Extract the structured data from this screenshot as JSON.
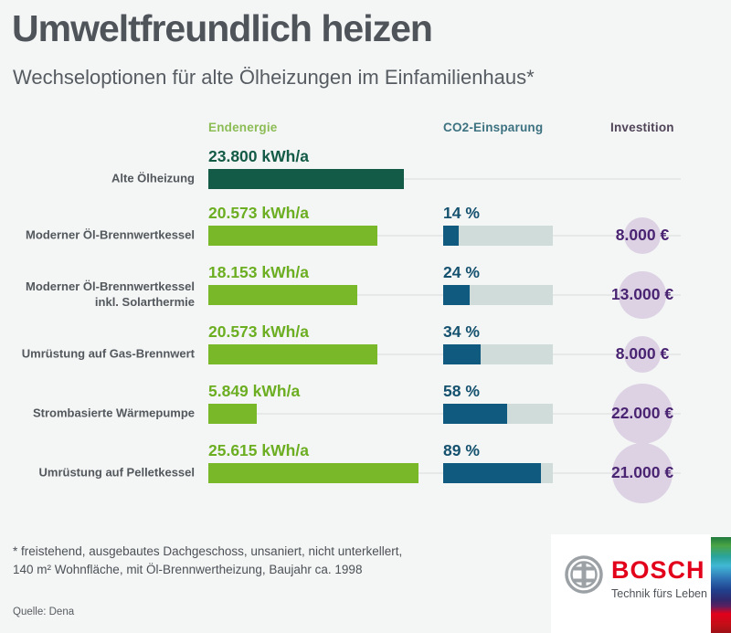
{
  "title": "Umweltfreundlich heizen",
  "subtitle": "Wechseloptionen für alte Ölheizungen im Einfamilienhaus*",
  "columns": {
    "energy": "Endenergie",
    "co2": "CO2-Einsparung",
    "invest": "Investition"
  },
  "rows": [
    {
      "label": "Alte Ölheizung",
      "energy_label": "23.800 kWh/a",
      "energy_kwh": 23800,
      "co2_label": "",
      "co2_pct": 0,
      "invest_label": "",
      "invest_eur": 0
    },
    {
      "label": "Moderner Öl-Brennwertkessel",
      "energy_label": "20.573 kWh/a",
      "energy_kwh": 20573,
      "co2_label": "14 %",
      "co2_pct": 14,
      "invest_label": "8.000 €",
      "invest_eur": 8000
    },
    {
      "label": "Moderner Öl-Brennwertkessel\ninkl. Solarthermie",
      "energy_label": "18.153 kWh/a",
      "energy_kwh": 18153,
      "co2_label": "24 %",
      "co2_pct": 24,
      "invest_label": "13.000 €",
      "invest_eur": 13000
    },
    {
      "label": "Umrüstung auf Gas-Brennwert",
      "energy_label": "20.573 kWh/a",
      "energy_kwh": 20573,
      "co2_label": "34 %",
      "co2_pct": 34,
      "invest_label": "8.000 €",
      "invest_eur": 8000
    },
    {
      "label": "Strombasierte Wärmepumpe",
      "energy_label": "5.849 kWh/a",
      "energy_kwh": 5849,
      "co2_label": "58 %",
      "co2_pct": 58,
      "invest_label": "22.000 €",
      "invest_eur": 22000
    },
    {
      "label": "Umrüstung auf Pelletkessel",
      "energy_label": "25.615 kWh/a",
      "energy_kwh": 25615,
      "co2_label": "89 %",
      "co2_pct": 89,
      "invest_label": "21.000 €",
      "invest_eur": 21000
    }
  ],
  "footnote": "* freistehend, ausgebautes Dachgeschoss, unsaniert, nicht unterkellert,\n   140 m² Wohnfläche, mit Öl-Brennwertheizung, Baujahr ca. 1998",
  "source": "Quelle: Dena",
  "logo": {
    "brand": "BOSCH",
    "tagline": "Technik fürs Leben"
  },
  "colors": {
    "energy_bar": "#78b829",
    "energy_baseline_bar": "#135b46",
    "co2_fill": "#115a7f",
    "co2_track": "#cfdcda",
    "invest_circle": "#dcd2e4",
    "invest_text": "#4a2472",
    "bosch_red": "#e2001a",
    "background": "#f4f5f5"
  },
  "chart_data": {
    "type": "bar",
    "title": "Umweltfreundlich heizen",
    "subtitle": "Wechseloptionen für alte Ölheizungen im Einfamilienhaus*",
    "categories": [
      "Alte Ölheizung",
      "Moderner Öl-Brennwertkessel",
      "Moderner Öl-Brennwertkessel inkl. Solarthermie",
      "Umrüstung auf Gas-Brennwert",
      "Strombasierte Wärmepumpe",
      "Umrüstung auf Pelletkessel"
    ],
    "series": [
      {
        "name": "Endenergie",
        "unit": "kWh/a",
        "values": [
          23800,
          20573,
          18153,
          20573,
          5849,
          25615
        ]
      },
      {
        "name": "CO2-Einsparung",
        "unit": "%",
        "values": [
          null,
          14,
          24,
          34,
          58,
          89
        ]
      },
      {
        "name": "Investition",
        "unit": "€",
        "values": [
          null,
          8000,
          13000,
          8000,
          22000,
          21000
        ]
      }
    ],
    "layout": {
      "orientation": "horizontal",
      "grid": false,
      "legend_position": "top-as-column-headers"
    },
    "source": "Quelle: Dena"
  }
}
